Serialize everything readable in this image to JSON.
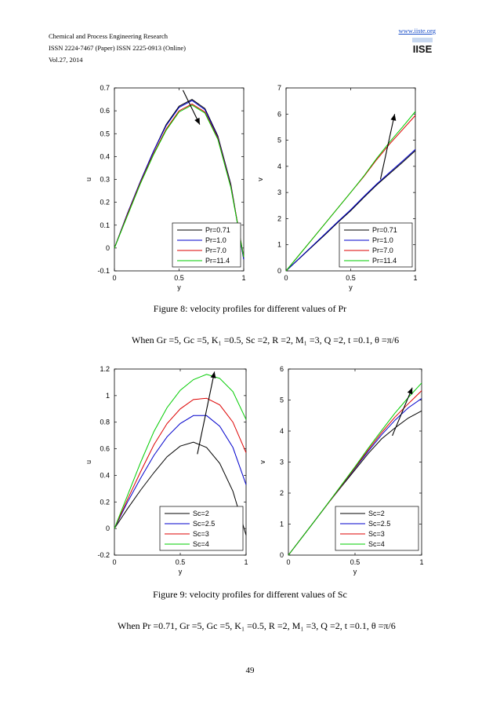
{
  "header": {
    "journal": "Chemical and Process Engineering Research",
    "issn": "ISSN 2224-7467 (Paper) ISSN 2225-0913 (Online)",
    "volume": "Vol.27, 2014",
    "url": "www.iiste.org",
    "logo_text": "IISE"
  },
  "figure8": {
    "caption": "Figure 8: velocity profiles for different values of  Pr",
    "condition": "When  Gr =5, Gc =5, K₁ =0.5, Sc =2, R =2,  M₁ =3, Q =2, t =0.1, θ =π/6"
  },
  "figure9": {
    "caption": "Figure 9: velocity profiles for different values of  Sc",
    "condition": "When  Pr =0.71, Gr =5, Gc =5, K₁ =0.5, R =2,  M₁ =3, Q =2, t =0.1, θ =π/6"
  },
  "page_number": "49",
  "colors": {
    "s1": "#000000",
    "s2": "#0000cc",
    "s3": "#dd0000",
    "s4": "#00cc00"
  },
  "chart_data": [
    {
      "id": "fig8a",
      "type": "line",
      "xlabel": "y",
      "ylabel": "u",
      "xlim": [
        0,
        1
      ],
      "ylim": [
        -0.1,
        0.7
      ],
      "xticks": [
        0,
        0.5,
        1
      ],
      "xtick_labels": [
        "0",
        "0.5",
        "1"
      ],
      "yticks": [
        -0.1,
        0,
        0.1,
        0.2,
        0.3,
        0.4,
        0.5,
        0.6,
        0.7
      ],
      "ytick_labels": [
        "-0.1",
        "0",
        "0.1",
        "0.2",
        "0.3",
        "0.4",
        "0.5",
        "0.6",
        "0.7"
      ],
      "x": [
        0,
        0.1,
        0.2,
        0.3,
        0.4,
        0.5,
        0.6,
        0.7,
        0.8,
        0.9,
        1.0
      ],
      "series": [
        {
          "name": "Pr=0.71",
          "values": [
            0,
            0.15,
            0.29,
            0.42,
            0.54,
            0.62,
            0.65,
            0.61,
            0.49,
            0.28,
            -0.05
          ]
        },
        {
          "name": "Pr=1.0",
          "values": [
            0,
            0.15,
            0.29,
            0.42,
            0.535,
            0.615,
            0.645,
            0.605,
            0.485,
            0.275,
            -0.05
          ]
        },
        {
          "name": "Pr=7.0",
          "values": [
            0,
            0.145,
            0.285,
            0.41,
            0.52,
            0.6,
            0.63,
            0.595,
            0.48,
            0.27,
            -0.04
          ]
        },
        {
          "name": "Pr=11.4",
          "values": [
            0,
            0.14,
            0.28,
            0.405,
            0.515,
            0.595,
            0.625,
            0.59,
            0.475,
            0.265,
            -0.04
          ]
        }
      ],
      "arrow": {
        "from": [
          0.53,
          0.69
        ],
        "to": [
          0.66,
          0.54
        ]
      }
    },
    {
      "id": "fig8b",
      "type": "line",
      "xlabel": "y",
      "ylabel": "v",
      "xlim": [
        0,
        1
      ],
      "ylim": [
        0,
        7
      ],
      "xticks": [
        0,
        0.5,
        1
      ],
      "xtick_labels": [
        "0",
        "0.5",
        "1"
      ],
      "yticks": [
        0,
        1,
        2,
        3,
        4,
        5,
        6,
        7
      ],
      "ytick_labels": [
        "0",
        "1",
        "2",
        "3",
        "4",
        "5",
        "6",
        "7"
      ],
      "x": [
        0,
        0.1,
        0.2,
        0.3,
        0.4,
        0.5,
        0.6,
        0.7,
        0.8,
        0.9,
        1.0
      ],
      "series": [
        {
          "name": "Pr=0.71",
          "values": [
            0,
            0.46,
            0.92,
            1.38,
            1.85,
            2.3,
            2.8,
            3.28,
            3.72,
            4.15,
            4.6
          ]
        },
        {
          "name": "Pr=1.0",
          "values": [
            0,
            0.47,
            0.94,
            1.41,
            1.88,
            2.34,
            2.84,
            3.32,
            3.76,
            4.2,
            4.65
          ]
        },
        {
          "name": "Pr=7.0",
          "values": [
            0,
            0.6,
            1.2,
            1.8,
            2.4,
            3.0,
            3.6,
            4.25,
            4.85,
            5.4,
            5.95
          ]
        },
        {
          "name": "Pr=11.4",
          "values": [
            0,
            0.6,
            1.2,
            1.8,
            2.4,
            3.0,
            3.62,
            4.3,
            4.92,
            5.5,
            6.1
          ]
        }
      ],
      "arrow": {
        "from": [
          0.73,
          3.5
        ],
        "to": [
          0.84,
          6.0
        ]
      }
    },
    {
      "id": "fig9a",
      "type": "line",
      "xlabel": "y",
      "ylabel": "u",
      "xlim": [
        0,
        1
      ],
      "ylim": [
        -0.2,
        1.2
      ],
      "xticks": [
        0,
        0.5,
        1
      ],
      "xtick_labels": [
        "0",
        "0.5",
        "1"
      ],
      "yticks": [
        -0.2,
        0,
        0.2,
        0.4,
        0.6,
        0.8,
        1.0,
        1.2
      ],
      "ytick_labels": [
        "-0.2",
        "0",
        "0.2",
        "0.4",
        "0.6",
        "0.8",
        "1",
        "1.2"
      ],
      "x": [
        0,
        0.1,
        0.2,
        0.3,
        0.4,
        0.5,
        0.6,
        0.7,
        0.8,
        0.9,
        1.0
      ],
      "series": [
        {
          "name": "Sc=2",
          "values": [
            0,
            0.15,
            0.29,
            0.42,
            0.54,
            0.62,
            0.65,
            0.61,
            0.49,
            0.28,
            -0.05
          ]
        },
        {
          "name": "Sc=2.5",
          "values": [
            0,
            0.2,
            0.38,
            0.55,
            0.69,
            0.79,
            0.85,
            0.85,
            0.77,
            0.61,
            0.33
          ]
        },
        {
          "name": "Sc=3",
          "values": [
            0,
            0.22,
            0.43,
            0.63,
            0.79,
            0.9,
            0.97,
            0.98,
            0.93,
            0.8,
            0.57
          ]
        },
        {
          "name": "Sc=4",
          "values": [
            0,
            0.25,
            0.5,
            0.73,
            0.91,
            1.04,
            1.12,
            1.16,
            1.13,
            1.03,
            0.82
          ]
        }
      ],
      "arrow": {
        "from": [
          0.63,
          0.56
        ],
        "to": [
          0.76,
          1.18
        ]
      }
    },
    {
      "id": "fig9b",
      "type": "line",
      "xlabel": "y",
      "ylabel": "v",
      "xlim": [
        0,
        1
      ],
      "ylim": [
        0,
        6
      ],
      "xticks": [
        0,
        0.5,
        1
      ],
      "xtick_labels": [
        "0",
        "0.5",
        "1"
      ],
      "yticks": [
        0,
        1,
        2,
        3,
        4,
        5,
        6
      ],
      "ytick_labels": [
        "0",
        "1",
        "2",
        "3",
        "4",
        "5",
        "6"
      ],
      "x": [
        0,
        0.1,
        0.2,
        0.3,
        0.4,
        0.5,
        0.6,
        0.7,
        0.8,
        0.9,
        1.0
      ],
      "series": [
        {
          "name": "Sc=2",
          "values": [
            0,
            0.56,
            1.12,
            1.68,
            2.22,
            2.75,
            3.28,
            3.75,
            4.1,
            4.42,
            4.65
          ]
        },
        {
          "name": "Sc=2.5",
          "values": [
            0,
            0.56,
            1.12,
            1.68,
            2.24,
            2.8,
            3.35,
            3.88,
            4.35,
            4.75,
            5.05
          ]
        },
        {
          "name": "Sc=3",
          "values": [
            0,
            0.56,
            1.12,
            1.68,
            2.25,
            2.82,
            3.4,
            3.95,
            4.45,
            4.88,
            5.3
          ]
        },
        {
          "name": "Sc=4",
          "values": [
            0,
            0.56,
            1.12,
            1.69,
            2.27,
            2.85,
            3.45,
            4.02,
            4.58,
            5.08,
            5.55
          ]
        }
      ],
      "arrow": {
        "from": [
          0.78,
          3.85
        ],
        "to": [
          0.93,
          5.4
        ]
      }
    }
  ]
}
